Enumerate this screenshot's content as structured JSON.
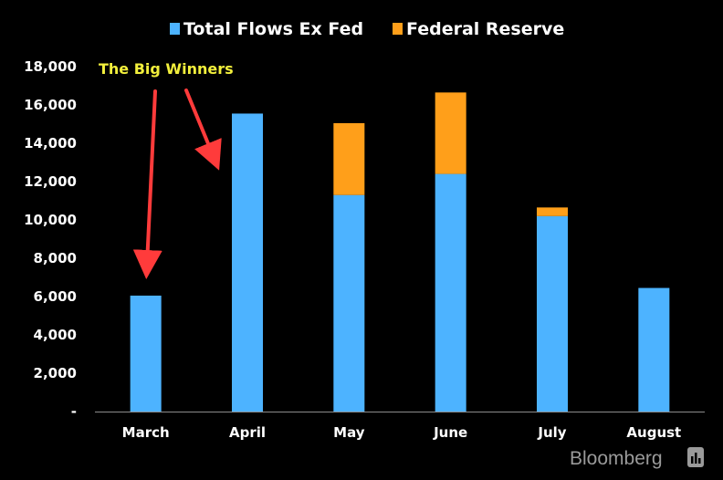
{
  "chart_data": {
    "type": "bar",
    "stacked": true,
    "categories": [
      "March",
      "April",
      "May",
      "June",
      "July",
      "August"
    ],
    "series": [
      {
        "name": "Total Flows Ex Fed",
        "color": "#4db3ff",
        "values": [
          6050,
          15550,
          11300,
          12400,
          10200,
          6450
        ]
      },
      {
        "name": "Federal Reserve",
        "color": "#ff9f1a",
        "values": [
          0,
          0,
          3750,
          4250,
          450,
          0
        ]
      }
    ],
    "ylim": [
      0,
      18000
    ],
    "y_ticks": [
      {
        "value": 0,
        "label": "-"
      },
      {
        "value": 2000,
        "label": "2,000"
      },
      {
        "value": 4000,
        "label": "4,000"
      },
      {
        "value": 6000,
        "label": "6,000"
      },
      {
        "value": 8000,
        "label": "8,000"
      },
      {
        "value": 10000,
        "label": "10,000"
      },
      {
        "value": 12000,
        "label": "12,000"
      },
      {
        "value": 14000,
        "label": "14,000"
      },
      {
        "value": 16000,
        "label": "16,000"
      },
      {
        "value": 18000,
        "label": "18,000"
      }
    ],
    "legend_position": "top-center",
    "grid": false,
    "annotation": {
      "text": "The Big Winners",
      "color": "#f2ef3c",
      "arrow_color": "#ff3b3b",
      "targets": [
        "March",
        "April"
      ]
    }
  },
  "branding": {
    "text": "Bloomberg",
    "icon": "bloomberg-chart-icon"
  }
}
